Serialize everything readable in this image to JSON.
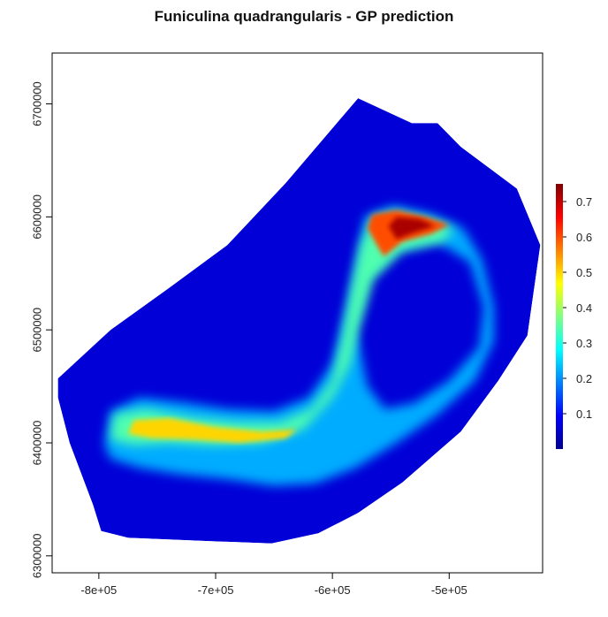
{
  "chart_data": {
    "type": "heatmap",
    "title": "Funiculina quadrangularis - GP prediction",
    "xlabel": "",
    "ylabel": "",
    "xlim": [
      -840000,
      -420000
    ],
    "ylim": [
      6285000,
      6745000
    ],
    "x_ticks": [
      {
        "value": -800000,
        "label": "-8e+05"
      },
      {
        "value": -700000,
        "label": "-7e+05"
      },
      {
        "value": -600000,
        "label": "-6e+05"
      },
      {
        "value": -500000,
        "label": "-5e+05"
      }
    ],
    "y_ticks": [
      {
        "value": 6300000,
        "label": "6300000"
      },
      {
        "value": 6400000,
        "label": "6400000"
      },
      {
        "value": 6500000,
        "label": "6500000"
      },
      {
        "value": 6600000,
        "label": "6600000"
      },
      {
        "value": 6700000,
        "label": "6700000"
      }
    ],
    "colorbar": {
      "range": [
        0,
        0.75
      ],
      "ticks": [
        {
          "value": 0.1,
          "label": "0.1"
        },
        {
          "value": 0.2,
          "label": "0.2"
        },
        {
          "value": 0.3,
          "label": "0.3"
        },
        {
          "value": 0.4,
          "label": "0.4"
        },
        {
          "value": 0.5,
          "label": "0.5"
        },
        {
          "value": 0.6,
          "label": "0.6"
        },
        {
          "value": 0.7,
          "label": "0.7"
        }
      ],
      "colors": [
        "#00008f",
        "#0000ff",
        "#0080ff",
        "#00ffff",
        "#80ff80",
        "#ffff00",
        "#ff8000",
        "#ff0000",
        "#800000"
      ]
    },
    "region_outline": [
      [
        -835000,
        6457000
      ],
      [
        -790000,
        6500000
      ],
      [
        -740000,
        6537000
      ],
      [
        -690000,
        6575000
      ],
      [
        -640000,
        6630000
      ],
      [
        -578000,
        6705000
      ],
      [
        -532000,
        6683000
      ],
      [
        -510000,
        6683000
      ],
      [
        -490000,
        6662000
      ],
      [
        -442000,
        6625000
      ],
      [
        -422000,
        6575000
      ],
      [
        -433000,
        6495000
      ],
      [
        -458000,
        6455000
      ],
      [
        -490000,
        6410000
      ],
      [
        -540000,
        6365000
      ],
      [
        -578000,
        6338000
      ],
      [
        -612000,
        6320000
      ],
      [
        -652000,
        6311000
      ],
      [
        -704000,
        6313000
      ],
      [
        -775000,
        6316000
      ],
      [
        -798000,
        6322000
      ],
      [
        -805000,
        6345000
      ],
      [
        -825000,
        6400000
      ],
      [
        -835000,
        6440000
      ]
    ],
    "regions": [
      {
        "kind": "low",
        "value": 0.06,
        "points": [
          [
            -835000,
            6457000
          ],
          [
            -790000,
            6500000
          ],
          [
            -740000,
            6537000
          ],
          [
            -690000,
            6575000
          ],
          [
            -640000,
            6630000
          ],
          [
            -578000,
            6705000
          ],
          [
            -532000,
            6683000
          ],
          [
            -510000,
            6683000
          ],
          [
            -490000,
            6662000
          ],
          [
            -442000,
            6625000
          ],
          [
            -422000,
            6575000
          ],
          [
            -433000,
            6495000
          ],
          [
            -458000,
            6455000
          ],
          [
            -490000,
            6410000
          ],
          [
            -540000,
            6365000
          ],
          [
            -578000,
            6338000
          ],
          [
            -612000,
            6320000
          ],
          [
            -652000,
            6311000
          ],
          [
            -704000,
            6313000
          ],
          [
            -775000,
            6316000
          ],
          [
            -798000,
            6322000
          ],
          [
            -805000,
            6345000
          ],
          [
            -825000,
            6400000
          ],
          [
            -835000,
            6440000
          ]
        ]
      },
      {
        "kind": "band-lower",
        "value": 0.22,
        "points": [
          [
            -795000,
            6398000
          ],
          [
            -790000,
            6428000
          ],
          [
            -765000,
            6440000
          ],
          [
            -730000,
            6436000
          ],
          [
            -690000,
            6430000
          ],
          [
            -650000,
            6428000
          ],
          [
            -620000,
            6440000
          ],
          [
            -600000,
            6470000
          ],
          [
            -588000,
            6520000
          ],
          [
            -578000,
            6568000
          ],
          [
            -572000,
            6600000
          ],
          [
            -548000,
            6610000
          ],
          [
            -515000,
            6602000
          ],
          [
            -488000,
            6590000
          ],
          [
            -472000,
            6562000
          ],
          [
            -462000,
            6520000
          ],
          [
            -462000,
            6490000
          ],
          [
            -478000,
            6455000
          ],
          [
            -510000,
            6425000
          ],
          [
            -545000,
            6400000
          ],
          [
            -580000,
            6378000
          ],
          [
            -615000,
            6364000
          ],
          [
            -650000,
            6362000
          ],
          [
            -690000,
            6368000
          ],
          [
            -730000,
            6372000
          ],
          [
            -765000,
            6378000
          ],
          [
            -790000,
            6386000
          ]
        ]
      },
      {
        "kind": "band-inner",
        "value": 0.06,
        "points": [
          [
            -570000,
            6450000
          ],
          [
            -580000,
            6500000
          ],
          [
            -570000,
            6545000
          ],
          [
            -545000,
            6570000
          ],
          [
            -510000,
            6578000
          ],
          [
            -482000,
            6560000
          ],
          [
            -470000,
            6520000
          ],
          [
            -474000,
            6485000
          ],
          [
            -500000,
            6455000
          ],
          [
            -530000,
            6435000
          ],
          [
            -555000,
            6430000
          ]
        ]
      },
      {
        "kind": "band-upper",
        "value": 0.34,
        "points": [
          [
            -790000,
            6403000
          ],
          [
            -787000,
            6425000
          ],
          [
            -760000,
            6430000
          ],
          [
            -720000,
            6422000
          ],
          [
            -680000,
            6418000
          ],
          [
            -645000,
            6418000
          ],
          [
            -618000,
            6430000
          ],
          [
            -600000,
            6455000
          ],
          [
            -592000,
            6490000
          ],
          [
            -584000,
            6535000
          ],
          [
            -576000,
            6575000
          ],
          [
            -565000,
            6600000
          ],
          [
            -545000,
            6604000
          ],
          [
            -518000,
            6598000
          ],
          [
            -496000,
            6590000
          ],
          [
            -505000,
            6578000
          ],
          [
            -540000,
            6570000
          ],
          [
            -565000,
            6545000
          ],
          [
            -578000,
            6500000
          ],
          [
            -585000,
            6470000
          ],
          [
            -600000,
            6440000
          ],
          [
            -625000,
            6412000
          ],
          [
            -660000,
            6400000
          ],
          [
            -700000,
            6398000
          ],
          [
            -740000,
            6400000
          ],
          [
            -770000,
            6398000
          ]
        ]
      },
      {
        "kind": "yellow",
        "value": 0.5,
        "points": [
          [
            -775000,
            6408000
          ],
          [
            -770000,
            6420000
          ],
          [
            -740000,
            6422000
          ],
          [
            -700000,
            6414000
          ],
          [
            -660000,
            6410000
          ],
          [
            -630000,
            6412000
          ],
          [
            -640000,
            6404000
          ],
          [
            -680000,
            6400000
          ],
          [
            -720000,
            6403000
          ],
          [
            -755000,
            6404000
          ]
        ]
      },
      {
        "kind": "hot-outer",
        "value": 0.6,
        "points": [
          [
            -570000,
            6590000
          ],
          [
            -566000,
            6602000
          ],
          [
            -545000,
            6606000
          ],
          [
            -520000,
            6600000
          ],
          [
            -500000,
            6593000
          ],
          [
            -515000,
            6585000
          ],
          [
            -540000,
            6578000
          ],
          [
            -556000,
            6565000
          ],
          [
            -562000,
            6575000
          ]
        ]
      },
      {
        "kind": "hot-core",
        "value": 0.72,
        "points": [
          [
            -552000,
            6592000
          ],
          [
            -545000,
            6600000
          ],
          [
            -525000,
            6598000
          ],
          [
            -512000,
            6592000
          ],
          [
            -530000,
            6586000
          ],
          [
            -545000,
            6580000
          ]
        ]
      }
    ]
  }
}
